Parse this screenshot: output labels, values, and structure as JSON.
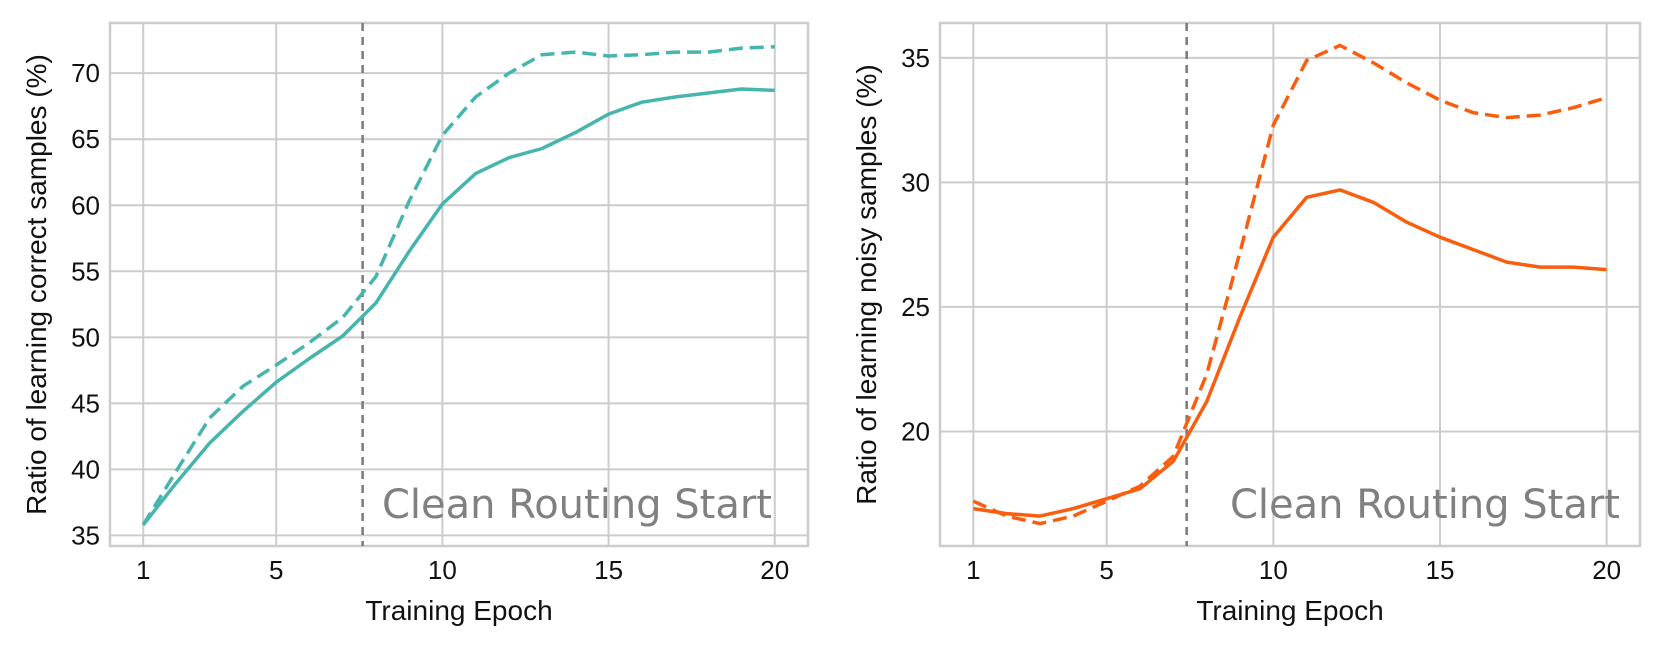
{
  "chart_data": [
    {
      "type": "line",
      "xlabel": "Training Epoch",
      "ylabel": "Ratio of learning correct samples (%)",
      "xlim": [
        0,
        21
      ],
      "ylim": [
        34.2,
        73.8
      ],
      "x_ticks": [
        1,
        5,
        10,
        15,
        20
      ],
      "y_ticks": [
        35,
        40,
        45,
        50,
        55,
        60,
        65,
        70
      ],
      "grid": true,
      "vline_x": 7.6,
      "annotation": "Clean Routing Start",
      "color": "#45b5ad",
      "x": [
        1,
        2,
        3,
        4,
        5,
        6,
        7,
        8,
        9,
        10,
        11,
        12,
        13,
        14,
        15,
        16,
        17,
        18,
        19,
        20
      ],
      "series": [
        {
          "style": "solid",
          "values": [
            35.8,
            39.0,
            42.0,
            44.4,
            46.6,
            48.4,
            50.1,
            52.6,
            56.5,
            60.1,
            62.4,
            63.6,
            64.3,
            65.5,
            66.9,
            67.8,
            68.2,
            68.5,
            68.8,
            68.7
          ]
        },
        {
          "style": "dashed",
          "values": [
            35.8,
            39.9,
            43.9,
            46.3,
            47.9,
            49.6,
            51.5,
            54.6,
            60.3,
            65.3,
            68.2,
            70.0,
            71.4,
            71.6,
            71.3,
            71.4,
            71.6,
            71.6,
            71.9,
            72.0
          ]
        }
      ]
    },
    {
      "type": "line",
      "xlabel": "Training Epoch",
      "ylabel": "Ratio of learning noisy samples (%)",
      "xlim": [
        0,
        21
      ],
      "ylim": [
        15.4,
        36.4
      ],
      "x_ticks": [
        1,
        5,
        10,
        15,
        20
      ],
      "y_ticks": [
        20,
        25,
        30,
        35
      ],
      "grid": true,
      "vline_x": 7.4,
      "annotation": "Clean Routing Start",
      "color": "#fa5d0e",
      "x": [
        1,
        2,
        3,
        4,
        5,
        6,
        7,
        8,
        9,
        10,
        11,
        12,
        13,
        14,
        15,
        16,
        17,
        18,
        19,
        20
      ],
      "series": [
        {
          "style": "solid",
          "values": [
            16.9,
            16.7,
            16.6,
            16.9,
            17.3,
            17.7,
            18.8,
            21.2,
            24.6,
            27.8,
            29.4,
            29.7,
            29.2,
            28.4,
            27.8,
            27.3,
            26.8,
            26.6,
            26.6,
            26.5
          ]
        },
        {
          "style": "dashed",
          "values": [
            17.2,
            16.6,
            16.3,
            16.6,
            17.2,
            17.8,
            19.0,
            22.3,
            27.2,
            32.3,
            34.9,
            35.5,
            34.8,
            34.0,
            33.3,
            32.8,
            32.6,
            32.7,
            33.0,
            33.4
          ]
        }
      ]
    }
  ]
}
